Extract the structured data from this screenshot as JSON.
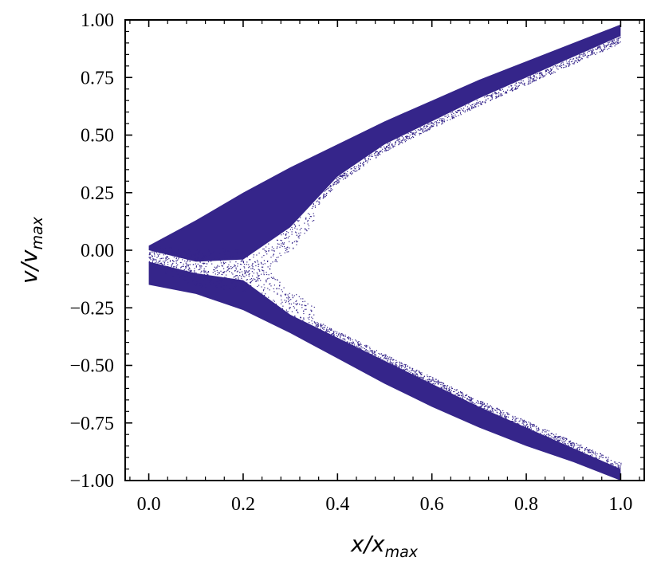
{
  "chart_data": {
    "type": "scatter",
    "xlabel": "x/x_max",
    "ylabel": "v/v_max",
    "xlim": [
      -0.05,
      1.05
    ],
    "ylim": [
      -1.0,
      1.0
    ],
    "x_ticks": [
      0.0,
      0.2,
      0.4,
      0.6,
      0.8,
      1.0
    ],
    "x_tick_labels": [
      "0.0",
      "0.2",
      "0.4",
      "0.6",
      "0.8",
      "1.0"
    ],
    "y_ticks": [
      -1.0,
      -0.75,
      -0.5,
      -0.25,
      0.0,
      0.25,
      0.5,
      0.75,
      1.0
    ],
    "y_tick_labels": [
      "−1.00",
      "−0.75",
      "−0.50",
      "−0.25",
      "0.00",
      "0.25",
      "0.50",
      "0.75",
      "1.00"
    ],
    "grid": false,
    "minor_ticks": true,
    "ticks_direction": "in",
    "marker_color": "#35258a",
    "series": [
      {
        "description_of_points": "dense band of particles",
        "upper_branch": {
          "x": [
            0.0,
            0.1,
            0.2,
            0.3,
            0.4,
            0.5,
            0.6,
            0.7,
            0.8,
            0.9,
            1.0
          ],
          "v_outer": [
            0.02,
            0.13,
            0.25,
            0.36,
            0.46,
            0.56,
            0.65,
            0.74,
            0.82,
            0.9,
            0.98
          ],
          "v_inner": [
            0.0,
            -0.05,
            -0.04,
            0.1,
            0.32,
            0.46,
            0.56,
            0.66,
            0.75,
            0.84,
            0.93
          ]
        },
        "lower_branch": {
          "x": [
            0.0,
            0.1,
            0.2,
            0.3,
            0.4,
            0.5,
            0.6,
            0.7,
            0.8,
            0.9,
            1.0
          ],
          "v_outer": [
            -0.15,
            -0.19,
            -0.26,
            -0.36,
            -0.47,
            -0.58,
            -0.68,
            -0.77,
            -0.85,
            -0.92,
            -1.0
          ],
          "v_inner": [
            -0.05,
            -0.1,
            -0.13,
            -0.28,
            -0.38,
            -0.48,
            -0.58,
            -0.68,
            -0.77,
            -0.86,
            -0.95
          ]
        }
      }
    ]
  }
}
